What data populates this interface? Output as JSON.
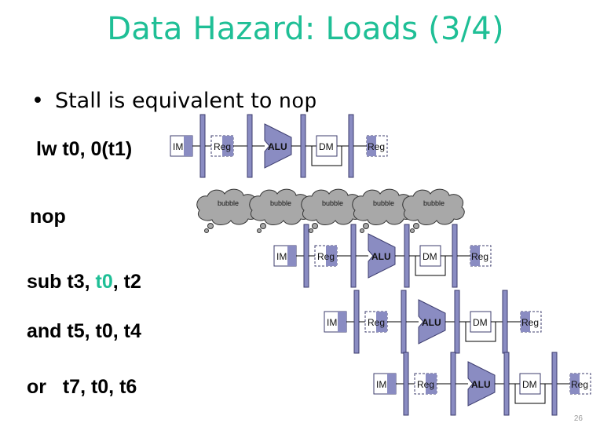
{
  "slide": {
    "title": "Data Hazard: Loads (3/4)",
    "bullet_text": "Stall is equivalent to ",
    "bullet_code": "nop",
    "page_number": "26"
  },
  "instructions": [
    {
      "parts": [
        "lw t0, 0(t1)"
      ]
    },
    {
      "parts": [
        "nop"
      ]
    },
    {
      "parts": [
        "sub t3, ",
        "t0",
        ", t2"
      ]
    },
    {
      "parts": [
        "and t5, t0, t4"
      ]
    },
    {
      "parts": [
        "or   t7, t0, t6"
      ]
    }
  ],
  "pipeline": {
    "stage_labels": {
      "im": "IM",
      "reg": "Reg",
      "alu": "ALU",
      "dm": "DM",
      "reg_wb": "Reg"
    },
    "bubble_label": "bubble",
    "bubble_count": 5,
    "rows": 4
  },
  "colors": {
    "title": "#1fbf96",
    "highlight": "#1fbf96",
    "stage_fill": "#8a8cc2",
    "stage_stroke": "#3c3c6e",
    "bubble_fill": "#a8a8a8"
  }
}
